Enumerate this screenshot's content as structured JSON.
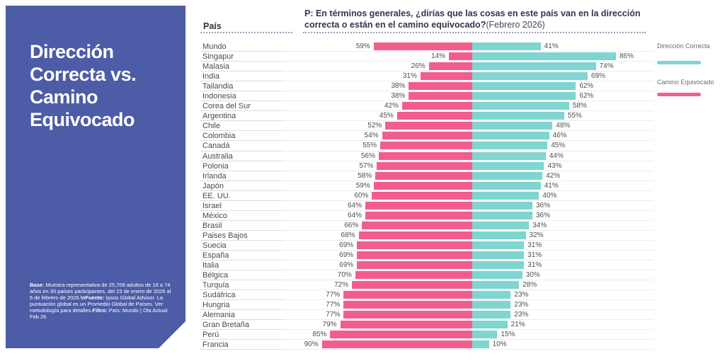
{
  "colors": {
    "sidebar_bg": "#4C5CA6",
    "wrong_track": "#F25D8E",
    "right_direction": "#7FD5CF",
    "dotted_line": "#96A0B5"
  },
  "sidebar": {
    "title": "Dirección Correcta vs. Camino Equivocado",
    "title_lines": [
      "Dirección",
      "Correcta vs.",
      "Camino",
      "Equivocado"
    ],
    "footnote_segments": [
      {
        "bold": true,
        "text": "Base:"
      },
      {
        "bold": false,
        "text": " Muestra representativa de 25,709 adultos de 16 a 74 años en 30 países participantes, del 23 de enero de 2026 al 6 de febrero de 2026."
      },
      {
        "bold": true,
        "text": "\\nFuente:"
      },
      {
        "bold": false,
        "text": " Ipsos Global Advisor. La puntuación global es un Promedio Global de Países. Ver metodología para detalles."
      },
      {
        "bold": true,
        "text": "Filtro:"
      },
      {
        "bold": false,
        "text": " País: Mundo | Ola Actual: Feb 26"
      }
    ]
  },
  "header": {
    "country_col_label": "País",
    "question_bold": "P: En términos generales, ¿dirías que las cosas en este país van en la dirección correcta o están en el camino equivocado?",
    "question_suffix": "(Febrero 2026)"
  },
  "legend": [
    {
      "label": "Dirección Correcta",
      "color": "#7FD5CF"
    },
    {
      "label": "Camino Equivocado",
      "color": "#F25D8E"
    }
  ],
  "chart_data": {
    "type": "bar",
    "variant": "diverging-horizontal",
    "title": "Dirección Correcta vs. Camino Equivocado",
    "unit": "%",
    "xlim": [
      0,
      100
    ],
    "legend_position": "right",
    "categories": [
      "Mundo",
      "Singapur",
      "Malasia",
      "India",
      "Tailandia",
      "Indonesia",
      "Corea del Sur",
      "Argentina",
      "Chile",
      "Colombia",
      "Canadá",
      "Australia",
      "Polonia",
      "Irlanda",
      "Japón",
      "EE. UU.",
      "Israel",
      "México",
      "Brasil",
      "Paises Bajos",
      "Suecia",
      "España",
      "Italia",
      "Bélgica",
      "Turquía",
      "Sudáfrica",
      "Hungria",
      "Alemania",
      "Gran Bretaña",
      "Perú",
      "Francia"
    ],
    "series": [
      {
        "name": "Camino Equivocado",
        "side": "left",
        "color": "#F25D8E",
        "values": [
          59,
          14,
          26,
          31,
          38,
          38,
          42,
          45,
          52,
          54,
          55,
          56,
          57,
          58,
          59,
          60,
          64,
          64,
          66,
          68,
          69,
          69,
          69,
          70,
          72,
          77,
          77,
          77,
          79,
          85,
          90
        ]
      },
      {
        "name": "Dirección Correcta",
        "side": "right",
        "color": "#7FD5CF",
        "values": [
          41,
          86,
          74,
          69,
          62,
          62,
          58,
          55,
          48,
          46,
          45,
          44,
          43,
          42,
          41,
          40,
          36,
          36,
          34,
          32,
          31,
          31,
          31,
          30,
          28,
          23,
          23,
          23,
          21,
          15,
          10
        ]
      }
    ]
  }
}
